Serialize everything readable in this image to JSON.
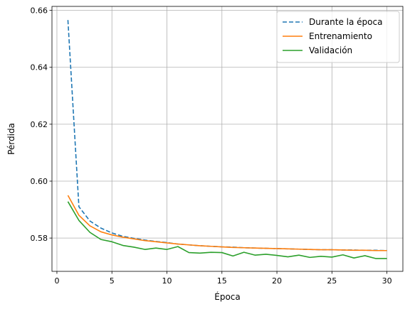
{
  "chart_data": {
    "type": "line",
    "xlabel": "Época",
    "ylabel": "Pérdida",
    "xlim": [
      -0.45,
      31.45
    ],
    "ylim": [
      0.5683,
      0.6614
    ],
    "xticks": [
      0,
      5,
      10,
      15,
      20,
      25,
      30
    ],
    "yticks": [
      0.58,
      0.6,
      0.62,
      0.64,
      0.66
    ],
    "xtick_labels": [
      "0",
      "5",
      "10",
      "15",
      "20",
      "25",
      "30"
    ],
    "ytick_labels": [
      "0.58",
      "0.60",
      "0.62",
      "0.64",
      "0.66"
    ],
    "grid": true,
    "legend_position": "top-right",
    "x": [
      1,
      2,
      3,
      4,
      5,
      6,
      7,
      8,
      9,
      10,
      11,
      12,
      13,
      14,
      15,
      16,
      17,
      18,
      19,
      20,
      21,
      22,
      23,
      24,
      25,
      26,
      27,
      28,
      29,
      30
    ],
    "series": [
      {
        "name": "Durante la época",
        "color": "#1f77b4",
        "dash": "dashed",
        "values": [
          0.6566,
          0.591,
          0.586,
          0.5835,
          0.5818,
          0.5806,
          0.5799,
          0.5793,
          0.5788,
          0.5784,
          0.5779,
          0.5776,
          0.5773,
          0.5771,
          0.5769,
          0.5768,
          0.5766,
          0.5765,
          0.5764,
          0.5763,
          0.5762,
          0.5761,
          0.576,
          0.5759,
          0.5759,
          0.5758,
          0.5758,
          0.5757,
          0.5757,
          0.5756
        ]
      },
      {
        "name": "Entrenamiento",
        "color": "#ff7f0e",
        "dash": "solid",
        "values": [
          0.595,
          0.588,
          0.5843,
          0.5822,
          0.5811,
          0.5803,
          0.5797,
          0.5791,
          0.5787,
          0.5783,
          0.5779,
          0.5776,
          0.5773,
          0.5771,
          0.5769,
          0.5767,
          0.5766,
          0.5765,
          0.5764,
          0.5763,
          0.5762,
          0.5761,
          0.576,
          0.5759,
          0.5759,
          0.5758,
          0.5757,
          0.5757,
          0.5756,
          0.5756
        ]
      },
      {
        "name": "Validación",
        "color": "#2ca02c",
        "dash": "solid",
        "values": [
          0.5928,
          0.5862,
          0.582,
          0.5795,
          0.5787,
          0.5774,
          0.5768,
          0.576,
          0.5765,
          0.576,
          0.577,
          0.5749,
          0.5747,
          0.575,
          0.5749,
          0.5737,
          0.575,
          0.574,
          0.5743,
          0.5739,
          0.5734,
          0.574,
          0.5732,
          0.5736,
          0.5733,
          0.5741,
          0.573,
          0.5738,
          0.5728,
          0.5728
        ]
      }
    ]
  }
}
